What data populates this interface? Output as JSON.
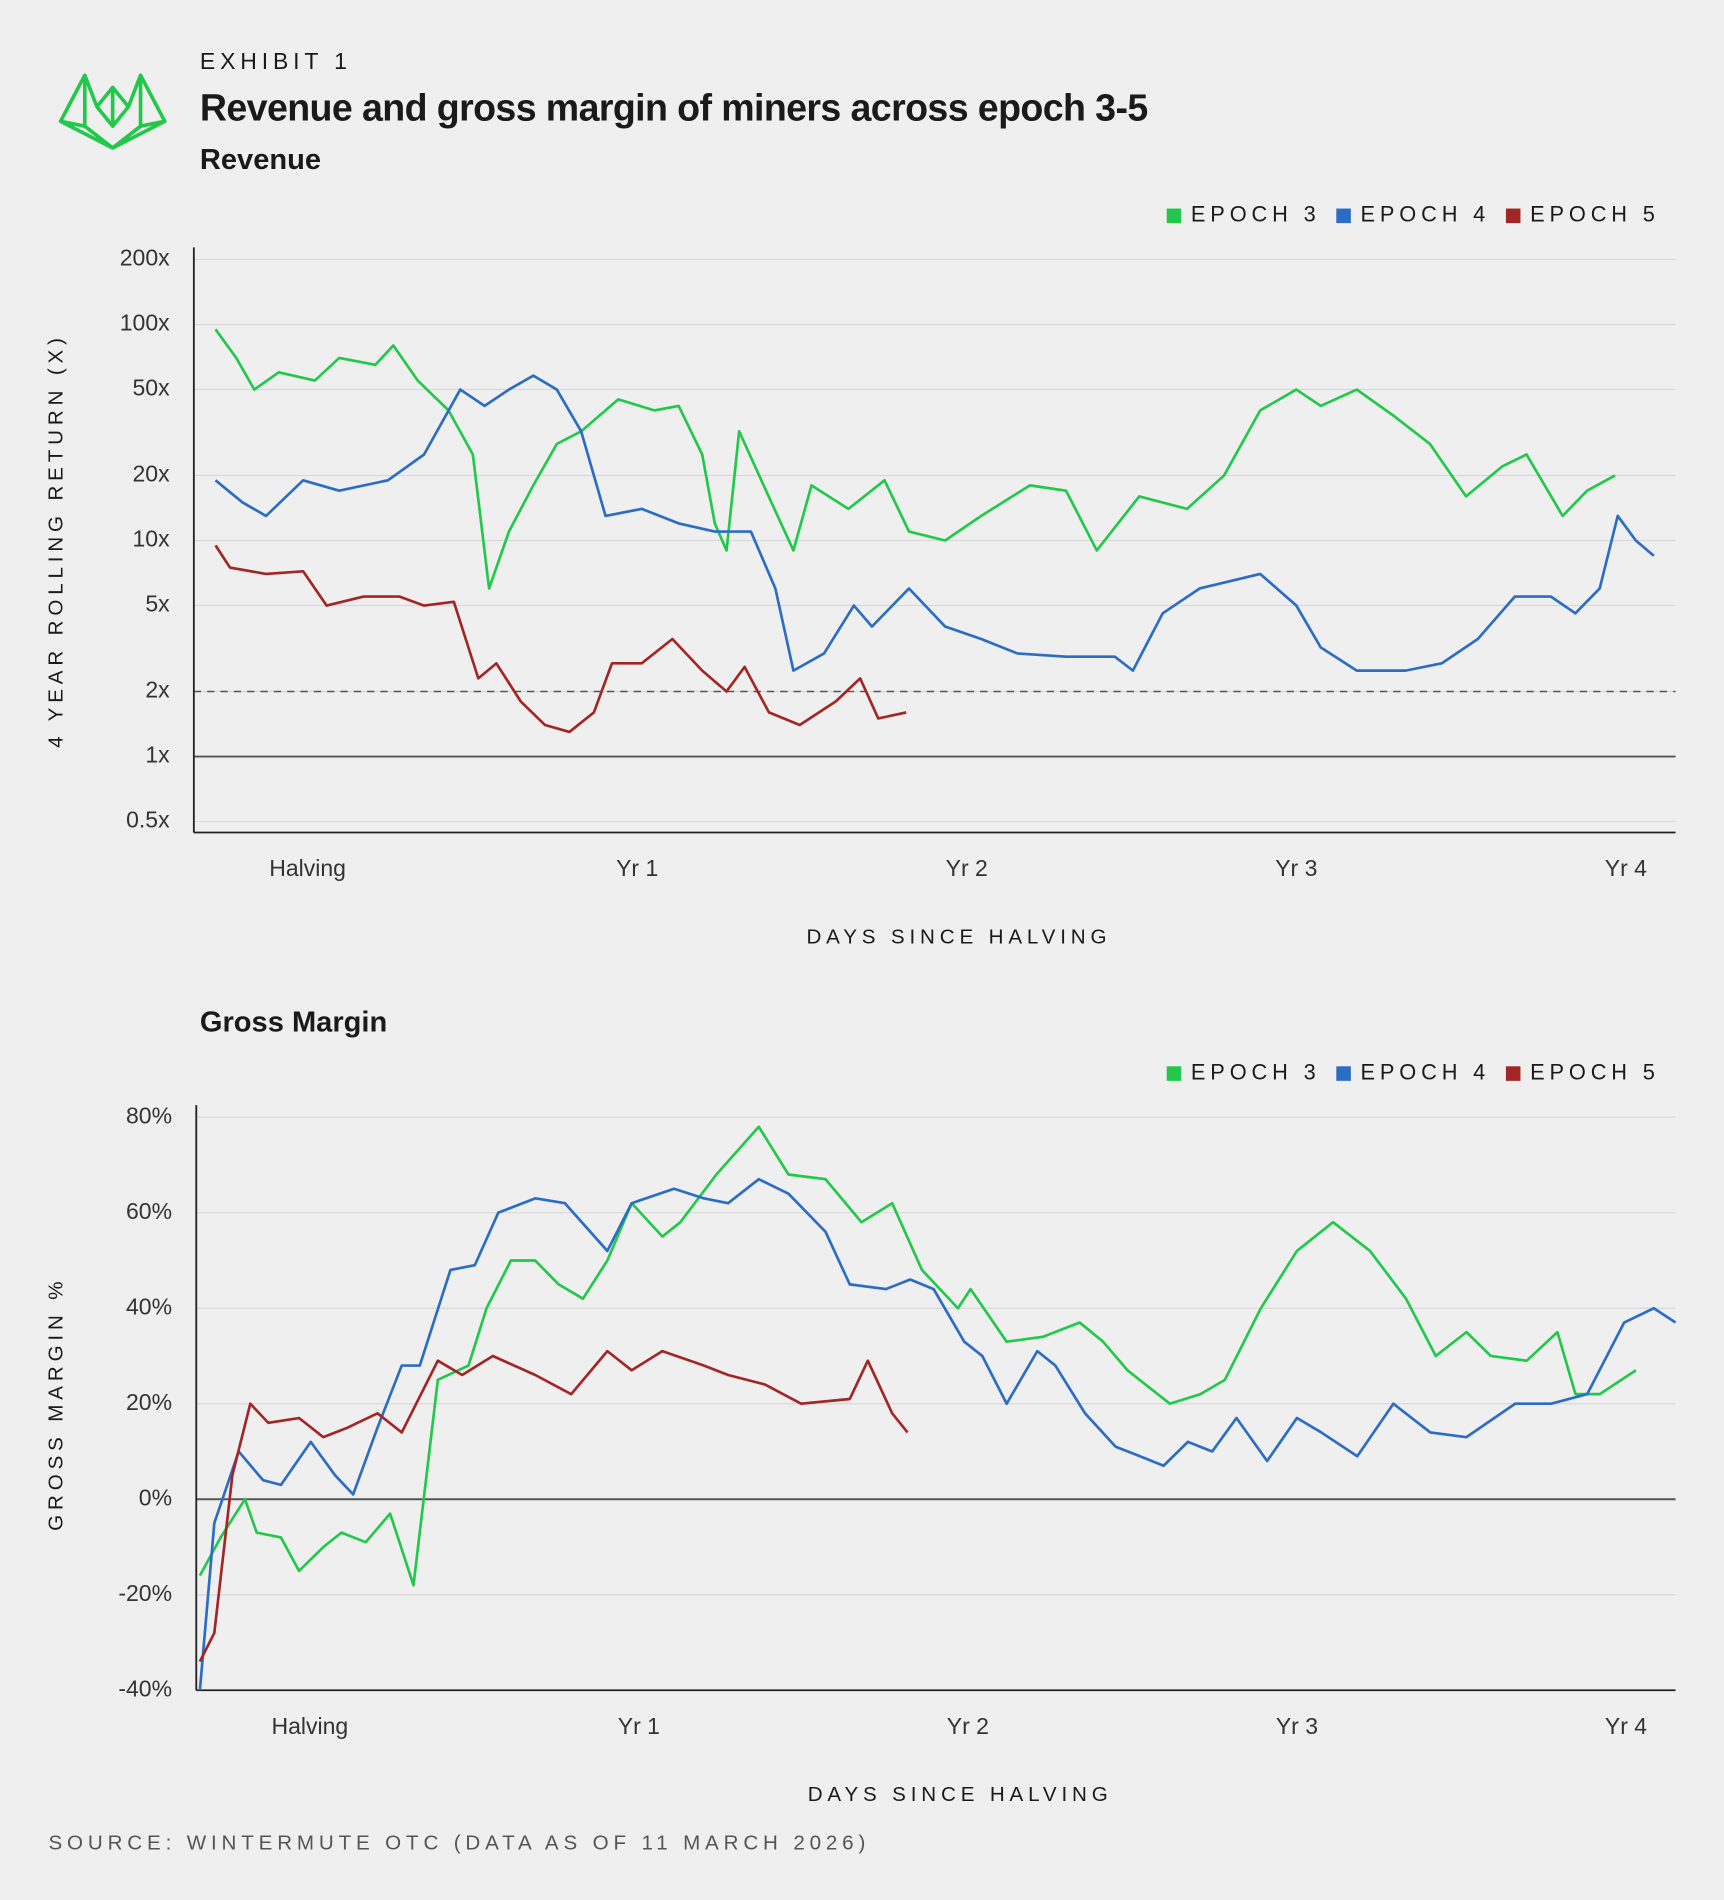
{
  "exhibit": "EXHIBIT 1",
  "title": "Revenue and gross margin of miners across epoch 3-5",
  "source": "SOURCE: WINTERMUTE OTC (DATA AS OF 11 MARCH 2026)",
  "chart_data": [
    {
      "type": "line",
      "title": "Revenue",
      "xlabel": "DAYS SINCE HALVING",
      "ylabel": "4 YEAR ROLLING RETURN (X)",
      "log_scale": true,
      "grid": true,
      "legend": "top-right",
      "xlim": [
        -126,
        1515
      ],
      "xticks": [
        {
          "value": 0,
          "label": "Halving"
        },
        {
          "value": 365,
          "label": "Yr 1"
        },
        {
          "value": 730,
          "label": "Yr 2"
        },
        {
          "value": 1095,
          "label": "Yr 3"
        },
        {
          "value": 1460,
          "label": "Yr 4"
        }
      ],
      "ylim": [
        0.5,
        200
      ],
      "yticks": [
        {
          "value": 0.5,
          "label": "0.5x"
        },
        {
          "value": 1,
          "label": "1x"
        },
        {
          "value": 2,
          "label": "2x"
        },
        {
          "value": 5,
          "label": "5x"
        },
        {
          "value": 10,
          "label": "10x"
        },
        {
          "value": 20,
          "label": "20x"
        },
        {
          "value": 50,
          "label": "50x"
        },
        {
          "value": 100,
          "label": "100x"
        },
        {
          "value": 200,
          "label": "200x"
        }
      ],
      "reference_lines": [
        {
          "value": 1,
          "style": "solid"
        },
        {
          "value": 2,
          "style": "dashed"
        }
      ],
      "series": [
        {
          "name": "EPOCH 3",
          "color": "#22c84a",
          "x": [
            -102,
            -79,
            -59,
            -32,
            8,
            35,
            75,
            95,
            122,
            156,
            183,
            201,
            223,
            250,
            276,
            303,
            344,
            384,
            411,
            437,
            451,
            464,
            478,
            505,
            538,
            558,
            599,
            639,
            666,
            706,
            746,
            800,
            840,
            874,
            921,
            974,
            1015,
            1055,
            1095,
            1122,
            1162,
            1202,
            1243,
            1283,
            1323,
            1350,
            1390,
            1417,
            1448
          ],
          "values": [
            95,
            70,
            50,
            60,
            55,
            70,
            65,
            80,
            55,
            40,
            25,
            6,
            11,
            18,
            28,
            32,
            45,
            40,
            42,
            25,
            12,
            9,
            32,
            18,
            9,
            18,
            14,
            19,
            11,
            10,
            13,
            18,
            17,
            9,
            16,
            14,
            20,
            40,
            50,
            42,
            50,
            38,
            28,
            16,
            22,
            25,
            13,
            17,
            20
          ]
        },
        {
          "name": "EPOCH 4",
          "color": "#2b6cc4",
          "x": [
            -102,
            -72,
            -46,
            -5,
            35,
            89,
            129,
            169,
            196,
            223,
            250,
            276,
            303,
            330,
            370,
            411,
            451,
            491,
            518,
            538,
            572,
            605,
            625,
            666,
            706,
            746,
            786,
            840,
            894,
            914,
            947,
            988,
            1055,
            1095,
            1122,
            1162,
            1216,
            1256,
            1296,
            1337,
            1377,
            1404,
            1431,
            1451,
            1471,
            1491
          ],
          "values": [
            19,
            15,
            13,
            19,
            17,
            19,
            25,
            50,
            42,
            50,
            58,
            50,
            32,
            13,
            14,
            12,
            11,
            11,
            6,
            2.5,
            3,
            5,
            4,
            6,
            4,
            3.5,
            3,
            2.9,
            2.9,
            2.5,
            4.6,
            6,
            7,
            5,
            3.2,
            2.5,
            2.5,
            2.7,
            3.5,
            5.5,
            5.5,
            4.6,
            6,
            13,
            10,
            8.5
          ]
        },
        {
          "name": "EPOCH 5",
          "color": "#a32626",
          "x": [
            -102,
            -86,
            -46,
            -5,
            21,
            62,
            102,
            129,
            162,
            189,
            209,
            236,
            263,
            290,
            317,
            337,
            370,
            404,
            437,
            464,
            484,
            511,
            545,
            585,
            612,
            632,
            663
          ],
          "values": [
            9.5,
            7.5,
            7,
            7.2,
            5,
            5.5,
            5.5,
            5,
            5.2,
            2.3,
            2.7,
            1.8,
            1.4,
            1.3,
            1.6,
            2.7,
            2.7,
            3.5,
            2.5,
            2,
            2.6,
            1.6,
            1.4,
            1.8,
            2.3,
            1.5,
            1.6
          ]
        }
      ]
    },
    {
      "type": "line",
      "title": "Gross Margin",
      "xlabel": "DAYS SINCE HALVING",
      "ylabel": "GROSS MARGIN %",
      "log_scale": false,
      "grid": true,
      "legend": "top-right",
      "xlim": [
        -126,
        1515
      ],
      "xticks": [
        {
          "value": 0,
          "label": "Halving"
        },
        {
          "value": 365,
          "label": "Yr 1"
        },
        {
          "value": 730,
          "label": "Yr 2"
        },
        {
          "value": 1095,
          "label": "Yr 3"
        },
        {
          "value": 1460,
          "label": "Yr 4"
        }
      ],
      "ylim": [
        -40,
        80
      ],
      "yticks": [
        {
          "value": -40,
          "label": "-40%"
        },
        {
          "value": -20,
          "label": "-20%"
        },
        {
          "value": 0,
          "label": "0%"
        },
        {
          "value": 20,
          "label": "20%"
        },
        {
          "value": 40,
          "label": "40%"
        },
        {
          "value": 60,
          "label": "60%"
        },
        {
          "value": 80,
          "label": "80%"
        }
      ],
      "reference_lines": [
        {
          "value": 0,
          "style": "solid"
        },
        {
          "value": -40,
          "style": "dashed"
        }
      ],
      "series": [
        {
          "name": "EPOCH 3",
          "color": "#22c84a",
          "x": [
            -122,
            -99,
            -72,
            -59,
            -32,
            -12,
            15,
            35,
            62,
            89,
            115,
            142,
            176,
            196,
            223,
            250,
            276,
            303,
            330,
            357,
            391,
            411,
            451,
            498,
            531,
            572,
            612,
            646,
            679,
            719,
            733,
            773,
            813,
            854,
            880,
            907,
            954,
            988,
            1015,
            1055,
            1095,
            1135,
            1176,
            1216,
            1249,
            1283,
            1310,
            1350,
            1384,
            1404,
            1431,
            1471
          ],
          "values": [
            -16,
            -8,
            0,
            -7,
            -8,
            -15,
            -10,
            -7,
            -9,
            -3,
            -18,
            25,
            28,
            40,
            50,
            50,
            45,
            42,
            50,
            62,
            55,
            58,
            68,
            78,
            68,
            67,
            58,
            62,
            48,
            40,
            44,
            33,
            34,
            37,
            33,
            27,
            20,
            22,
            25,
            40,
            52,
            58,
            52,
            42,
            30,
            35,
            30,
            29,
            35,
            22,
            22,
            27
          ]
        },
        {
          "name": "EPOCH 4",
          "color": "#2b6cc4",
          "x": [
            -122,
            -106,
            -79,
            -52,
            -32,
            1,
            28,
            48,
            75,
            102,
            122,
            156,
            183,
            209,
            250,
            283,
            330,
            357,
            404,
            437,
            464,
            498,
            531,
            572,
            599,
            639,
            666,
            692,
            726,
            746,
            773,
            807,
            827,
            860,
            894,
            921,
            947,
            974,
            1001,
            1028,
            1062,
            1095,
            1122,
            1162,
            1202,
            1243,
            1283,
            1337,
            1377,
            1417,
            1458,
            1491,
            1515
          ],
          "values": [
            -40,
            -5,
            10,
            4,
            3,
            12,
            5,
            1,
            15,
            28,
            28,
            48,
            49,
            60,
            63,
            62,
            52,
            62,
            65,
            63,
            62,
            67,
            64,
            56,
            45,
            44,
            46,
            44,
            33,
            30,
            20,
            31,
            28,
            18,
            11,
            9,
            7,
            12,
            10,
            17,
            8,
            17,
            14,
            9,
            20,
            14,
            13,
            20,
            20,
            22,
            37,
            40,
            37
          ]
        },
        {
          "name": "EPOCH 5",
          "color": "#a32626",
          "x": [
            -122,
            -106,
            -86,
            -66,
            -46,
            -12,
            15,
            42,
            75,
            102,
            142,
            169,
            203,
            250,
            290,
            330,
            357,
            391,
            437,
            464,
            505,
            545,
            599,
            619,
            646,
            663
          ],
          "values": [
            -34,
            -28,
            5,
            20,
            16,
            17,
            13,
            15,
            18,
            14,
            29,
            26,
            30,
            26,
            22,
            31,
            27,
            31,
            28,
            26,
            24,
            20,
            21,
            29,
            18,
            14
          ]
        }
      ]
    }
  ]
}
